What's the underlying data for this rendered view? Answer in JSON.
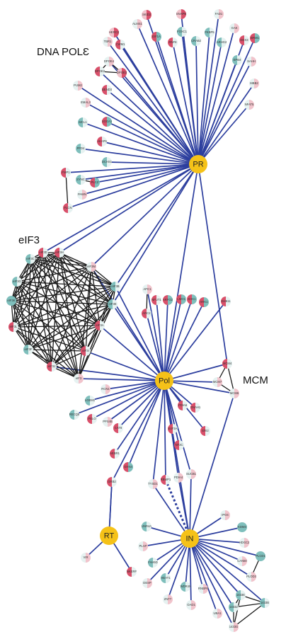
{
  "colors": {
    "edge": "#2c3e9e",
    "hub": "#f5c218",
    "teal": "#7fbfbc",
    "red": "#d9506a",
    "pale": "#e6f2f1",
    "pink": "#f1c4cc"
  },
  "groups": {
    "dna_pol": "DNA POLƐ",
    "eif3": "eIF3",
    "mcm": "MCM"
  },
  "hubs": [
    {
      "id": "PR",
      "label": "PR"
    },
    {
      "id": "Pol",
      "label": "Pol"
    },
    {
      "id": "RT",
      "label": "RT"
    },
    {
      "id": "IN",
      "label": "IN"
    }
  ],
  "proteins": [
    {
      "id": "SKIDE2",
      "label": "SKID2",
      "style": "pr"
    },
    {
      "id": "SNAPN",
      "label": "SNAPN",
      "style": "pr"
    },
    {
      "id": "FAD1",
      "label": "FAD1",
      "style": "pp"
    },
    {
      "id": "ALMS1",
      "label": "ALMS1",
      "style": "pp"
    },
    {
      "id": "FOXC1",
      "label": "FOXC1",
      "style": "tp"
    },
    {
      "id": "FKBP5",
      "label": "FKBP5",
      "style": "tp"
    },
    {
      "id": "GAK",
      "label": "GAK",
      "style": "pp"
    },
    {
      "id": "HERC2",
      "label": "HERC2",
      "style": "pr"
    },
    {
      "id": "EIF1A",
      "label": "EIF1A",
      "style": "rt"
    },
    {
      "id": "RNF8",
      "label": "RNF8",
      "style": "rp"
    },
    {
      "id": "CRAB2",
      "label": "CRAB2",
      "style": "tp"
    },
    {
      "id": "ARHG2",
      "label": "ARHG2",
      "style": "tp"
    },
    {
      "id": "DDX3",
      "label": "DDX3",
      "style": "rp"
    },
    {
      "id": "BRM1",
      "label": "BRM1",
      "style": "rt"
    },
    {
      "id": "TBR1",
      "label": "TBR1",
      "style": "pp"
    },
    {
      "id": "CWM1",
      "label": "CWM1",
      "style": "rp"
    },
    {
      "id": "DPOE4",
      "label": "DPOE4",
      "style": "pp"
    },
    {
      "id": "DPOE2",
      "label": "DPOE2",
      "style": "rp"
    },
    {
      "id": "DPOE3",
      "label": "DPOE3",
      "style": "pr"
    },
    {
      "id": "EPB4",
      "label": "EPB4",
      "style": "tp"
    },
    {
      "id": "SAHH",
      "label": "SAHH",
      "style": "pp"
    },
    {
      "id": "PUM2",
      "label": "PUM2",
      "style": "pp"
    },
    {
      "id": "BEND3",
      "label": "BEND3",
      "style": "rp"
    },
    {
      "id": "MBB2",
      "label": "MBB2",
      "style": "pp"
    },
    {
      "id": "EMAL3",
      "label": "EMAL3",
      "style": "pp"
    },
    {
      "id": "NFAT5",
      "label": "NFAT5",
      "style": "pp"
    },
    {
      "id": "MCL1",
      "label": "MCL1",
      "style": "tp"
    },
    {
      "id": "SOGA1",
      "label": "SOGA1",
      "style": "rt"
    },
    {
      "id": "AKAP9",
      "label": "AKAP9",
      "style": "rp"
    },
    {
      "id": "PFD4",
      "label": "PFD4",
      "style": "tp"
    },
    {
      "id": "DCHS1",
      "label": "DCHS1",
      "style": "tp"
    },
    {
      "id": "FMP1",
      "label": "FMP1",
      "style": "rp"
    },
    {
      "id": "SYNC",
      "label": "SYNC",
      "style": "tp"
    },
    {
      "id": "PLCZ",
      "label": "PLCZ",
      "style": "rt"
    },
    {
      "id": "PAWN",
      "label": "PAWN",
      "style": "pp"
    },
    {
      "id": "FLCN",
      "label": "FLCN",
      "style": "rp"
    },
    {
      "id": "EIF3D",
      "label": "eIF3D",
      "style": "rp"
    },
    {
      "id": "EIF3H",
      "label": "eIF3H",
      "style": "rp"
    },
    {
      "id": "EIF3C",
      "label": "eIF3C",
      "style": "tp"
    },
    {
      "id": "EIF3M",
      "label": "eIF3M",
      "style": "pp"
    },
    {
      "id": "EIF3G",
      "label": "eIF3G",
      "style": "tp"
    },
    {
      "id": "EIF3B",
      "label": "eIF3B",
      "style": "tp"
    },
    {
      "id": "EIF3K",
      "label": "eIF3K",
      "style": "tt"
    },
    {
      "id": "EIF3E",
      "label": "eIF3E",
      "style": "tp"
    },
    {
      "id": "EIF3L",
      "label": "eIF3L",
      "style": "rp"
    },
    {
      "id": "EIF3A",
      "label": "eIF3A",
      "style": "rp"
    },
    {
      "id": "EIF3F",
      "label": "eIF3F",
      "style": "tp"
    },
    {
      "id": "EIF3I",
      "label": "eIF3I",
      "style": "rp"
    },
    {
      "id": "EIF3J",
      "label": "eIF3J",
      "style": "rp"
    },
    {
      "id": "EIF3X",
      "label": "eIF3",
      "style": "pp"
    },
    {
      "id": "APC1",
      "label": "APC1",
      "style": "pp"
    },
    {
      "id": "ARC2",
      "label": "ARC2",
      "style": "rp"
    },
    {
      "id": "NFUT1",
      "label": "NFUT1",
      "style": "rp"
    },
    {
      "id": "ARFG2",
      "label": "ARFG2",
      "style": "rt"
    },
    {
      "id": "LMO1",
      "label": "LMO1",
      "style": "rt"
    },
    {
      "id": "KHK1",
      "label": "KHK1",
      "style": "rt"
    },
    {
      "id": "ARK1",
      "label": "ARK1",
      "style": "rt"
    },
    {
      "id": "DHB11",
      "label": "DHB11",
      "style": "rp"
    },
    {
      "id": "MCM4",
      "label": "MCM4",
      "style": "rp"
    },
    {
      "id": "MCM7",
      "label": "MCM7",
      "style": "pp"
    },
    {
      "id": "MCM6",
      "label": "MCM6",
      "style": "pp"
    },
    {
      "id": "RCN1",
      "label": "RCN1",
      "style": "pp"
    },
    {
      "id": "LGEM1",
      "label": "LGEM1",
      "style": "tp"
    },
    {
      "id": "RECQ5",
      "label": "RECQ5",
      "style": "tp"
    },
    {
      "id": "PELO",
      "label": "PELO",
      "style": "rp"
    },
    {
      "id": "PPS4B",
      "label": "PPS4B",
      "style": "pp"
    },
    {
      "id": "CAT8",
      "label": "CAT8",
      "style": "rp"
    },
    {
      "id": "PDIA6",
      "label": "PDIA6",
      "style": "rp"
    },
    {
      "id": "GNAH1",
      "label": "GNAH1",
      "style": "rp"
    },
    {
      "id": "E4F3A",
      "label": "E4F3A",
      "style": "rp"
    },
    {
      "id": "ERI2",
      "label": "ERI2",
      "style": "rp"
    },
    {
      "id": "NF3C",
      "label": "NF3C",
      "style": "rp"
    },
    {
      "id": "AEBR1",
      "label": "AEBR1",
      "style": "rp"
    },
    {
      "id": "GHN4",
      "label": "GHN4",
      "style": "rt"
    },
    {
      "id": "GRB2",
      "label": "GRB2",
      "style": "rp"
    },
    {
      "id": "TYSD1",
      "label": "TYSD1",
      "style": "pp"
    },
    {
      "id": "RBMP1",
      "label": "RBMP1",
      "style": "rp"
    },
    {
      "id": "PDIA4",
      "label": "PDIA4",
      "style": "pp"
    },
    {
      "id": "SUCB1",
      "label": "SUCB1",
      "style": "pp"
    },
    {
      "id": "VIR",
      "label": "VIR",
      "style": "pp"
    },
    {
      "id": "NKERF",
      "label": "NKERF",
      "style": "rp"
    },
    {
      "id": "UNR4A",
      "label": "UNR4A",
      "style": "tp"
    },
    {
      "id": "PLAP",
      "label": "PLAP",
      "style": "pp"
    },
    {
      "id": "FAH5D",
      "label": "FAH5D",
      "style": "tp"
    },
    {
      "id": "DESP",
      "label": "DESP",
      "style": "pp"
    },
    {
      "id": "HEAT1",
      "label": "HEAT1",
      "style": "tp"
    },
    {
      "id": "ZNT7",
      "label": "ZNT7",
      "style": "pp"
    },
    {
      "id": "WDR45",
      "label": "WDR45",
      "style": "tp"
    },
    {
      "id": "OAD1",
      "label": "OAD1",
      "style": "pp"
    },
    {
      "id": "RNBP6",
      "label": "RNBP6",
      "style": "pp"
    },
    {
      "id": "UBA1",
      "label": "UBA1",
      "style": "pp"
    },
    {
      "id": "IPO4",
      "label": "IPO4",
      "style": "pp"
    },
    {
      "id": "KDM3",
      "label": "KDM3",
      "style": "tt"
    },
    {
      "id": "HDGC2",
      "label": "HDGC2",
      "style": "pp"
    },
    {
      "id": "CAN50",
      "label": "CAN50",
      "style": "pp"
    },
    {
      "id": "PLCD1",
      "label": "PLCD1",
      "style": "tt"
    },
    {
      "id": "PLOD3",
      "label": "PLOD3",
      "style": "pp"
    },
    {
      "id": "1433E",
      "label": "1433E",
      "style": "tp"
    },
    {
      "id": "1433B",
      "label": "1433B",
      "style": "tp"
    },
    {
      "id": "1433Z",
      "label": "1433Z",
      "style": "tp"
    },
    {
      "id": "1433G",
      "label": "1433G",
      "style": "pp"
    }
  ]
}
